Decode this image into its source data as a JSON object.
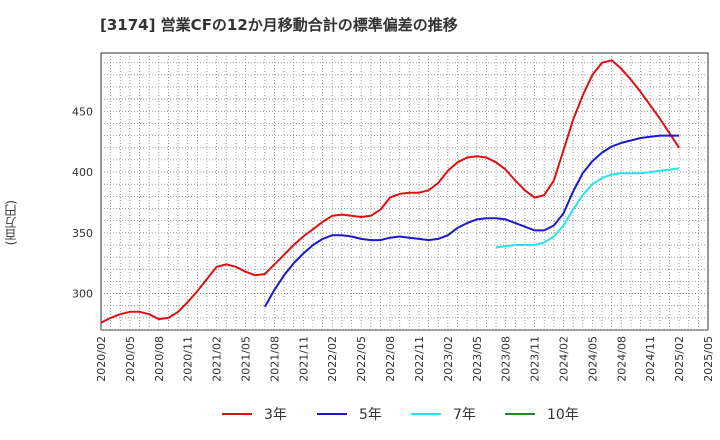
{
  "chart_data": {
    "type": "line",
    "title": "[3174]  営業CFの12か月移動合計の標準偏差の推移",
    "ylabel": "(百万円)",
    "xlabel": "",
    "x_ticks": [
      "2020/02",
      "2020/05",
      "2020/08",
      "2020/11",
      "2021/02",
      "2021/05",
      "2021/08",
      "2021/11",
      "2022/02",
      "2022/05",
      "2022/08",
      "2022/11",
      "2023/02",
      "2023/05",
      "2023/08",
      "2023/11",
      "2024/02",
      "2024/05",
      "2024/08",
      "2024/11",
      "2025/02",
      "2025/05"
    ],
    "y_ticks": [
      300,
      350,
      400,
      450
    ],
    "xlim": [
      "2020/02",
      "2025/05"
    ],
    "ylim": [
      270,
      498
    ],
    "grid": true,
    "legend_position": "bottom",
    "series": [
      {
        "name": "3年",
        "color": "#dd1111",
        "start": "2020/02",
        "values": [
          276,
          280,
          283,
          285,
          285,
          283,
          279,
          280,
          285,
          293,
          302,
          312,
          322,
          324,
          322,
          318,
          315,
          316,
          324,
          332,
          340,
          347,
          353,
          359,
          364,
          365,
          364,
          363,
          364,
          369,
          379,
          382,
          383,
          383,
          385,
          391,
          401,
          408,
          412,
          413,
          412,
          408,
          402,
          393,
          385,
          379,
          381,
          393,
          418,
          443,
          463,
          480,
          490,
          492,
          485,
          476,
          466,
          455,
          444,
          432,
          420
        ]
      },
      {
        "name": "5年",
        "color": "#1a1acc",
        "start": "2021/07",
        "values": [
          289,
          303,
          315,
          325,
          333,
          340,
          345,
          348,
          348,
          347,
          345,
          344,
          344,
          346,
          347,
          346,
          345,
          344,
          345,
          348,
          354,
          358,
          361,
          362,
          362,
          361,
          358,
          355,
          352,
          352,
          356,
          366,
          384,
          399,
          409,
          416,
          421,
          424,
          426,
          428,
          429,
          430,
          430,
          430
        ]
      },
      {
        "name": "7年",
        "color": "#22e5f0",
        "start": "2023/07",
        "values": [
          338,
          339,
          340,
          340,
          340,
          342,
          347,
          356,
          369,
          381,
          390,
          395,
          398,
          399,
          399,
          399,
          400,
          401,
          402,
          403
        ]
      },
      {
        "name": "10年",
        "color": "#228b22",
        "start": "2025/02",
        "values": []
      }
    ]
  }
}
